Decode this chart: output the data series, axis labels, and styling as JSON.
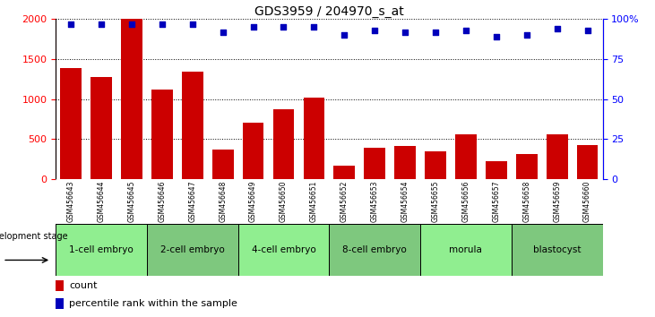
{
  "title": "GDS3959 / 204970_s_at",
  "samples": [
    "GSM456643",
    "GSM456644",
    "GSM456645",
    "GSM456646",
    "GSM456647",
    "GSM456648",
    "GSM456649",
    "GSM456650",
    "GSM456651",
    "GSM456652",
    "GSM456653",
    "GSM456654",
    "GSM456655",
    "GSM456656",
    "GSM456657",
    "GSM456658",
    "GSM456659",
    "GSM456660"
  ],
  "counts": [
    1390,
    1280,
    2000,
    1120,
    1340,
    370,
    710,
    870,
    1020,
    170,
    390,
    415,
    345,
    565,
    225,
    315,
    555,
    425
  ],
  "percentile_ranks": [
    97,
    97,
    97,
    97,
    97,
    92,
    95,
    95,
    95,
    90,
    93,
    92,
    92,
    93,
    89,
    90,
    94,
    93
  ],
  "stages": [
    {
      "label": "1-cell embryo",
      "start": 0,
      "end": 3,
      "color": "#90EE90"
    },
    {
      "label": "2-cell embryo",
      "start": 3,
      "end": 6,
      "color": "#7EC87E"
    },
    {
      "label": "4-cell embryo",
      "start": 6,
      "end": 9,
      "color": "#90EE90"
    },
    {
      "label": "8-cell embryo",
      "start": 9,
      "end": 12,
      "color": "#7EC87E"
    },
    {
      "label": "morula",
      "start": 12,
      "end": 15,
      "color": "#90EE90"
    },
    {
      "label": "blastocyst",
      "start": 15,
      "end": 18,
      "color": "#7EC87E"
    }
  ],
  "bar_color": "#CC0000",
  "dot_color": "#0000BB",
  "ylim_left": [
    0,
    2000
  ],
  "ylim_right": [
    0,
    100
  ],
  "yticks_left": [
    0,
    500,
    1000,
    1500,
    2000
  ],
  "yticks_right": [
    0,
    25,
    50,
    75,
    100
  ],
  "ytick_right_labels": [
    "0",
    "25",
    "50",
    "75",
    "100%"
  ],
  "grid_values": [
    500,
    1000,
    1500,
    2000
  ],
  "tick_bg": "#c8c8c8",
  "bg_color": "#ffffff"
}
